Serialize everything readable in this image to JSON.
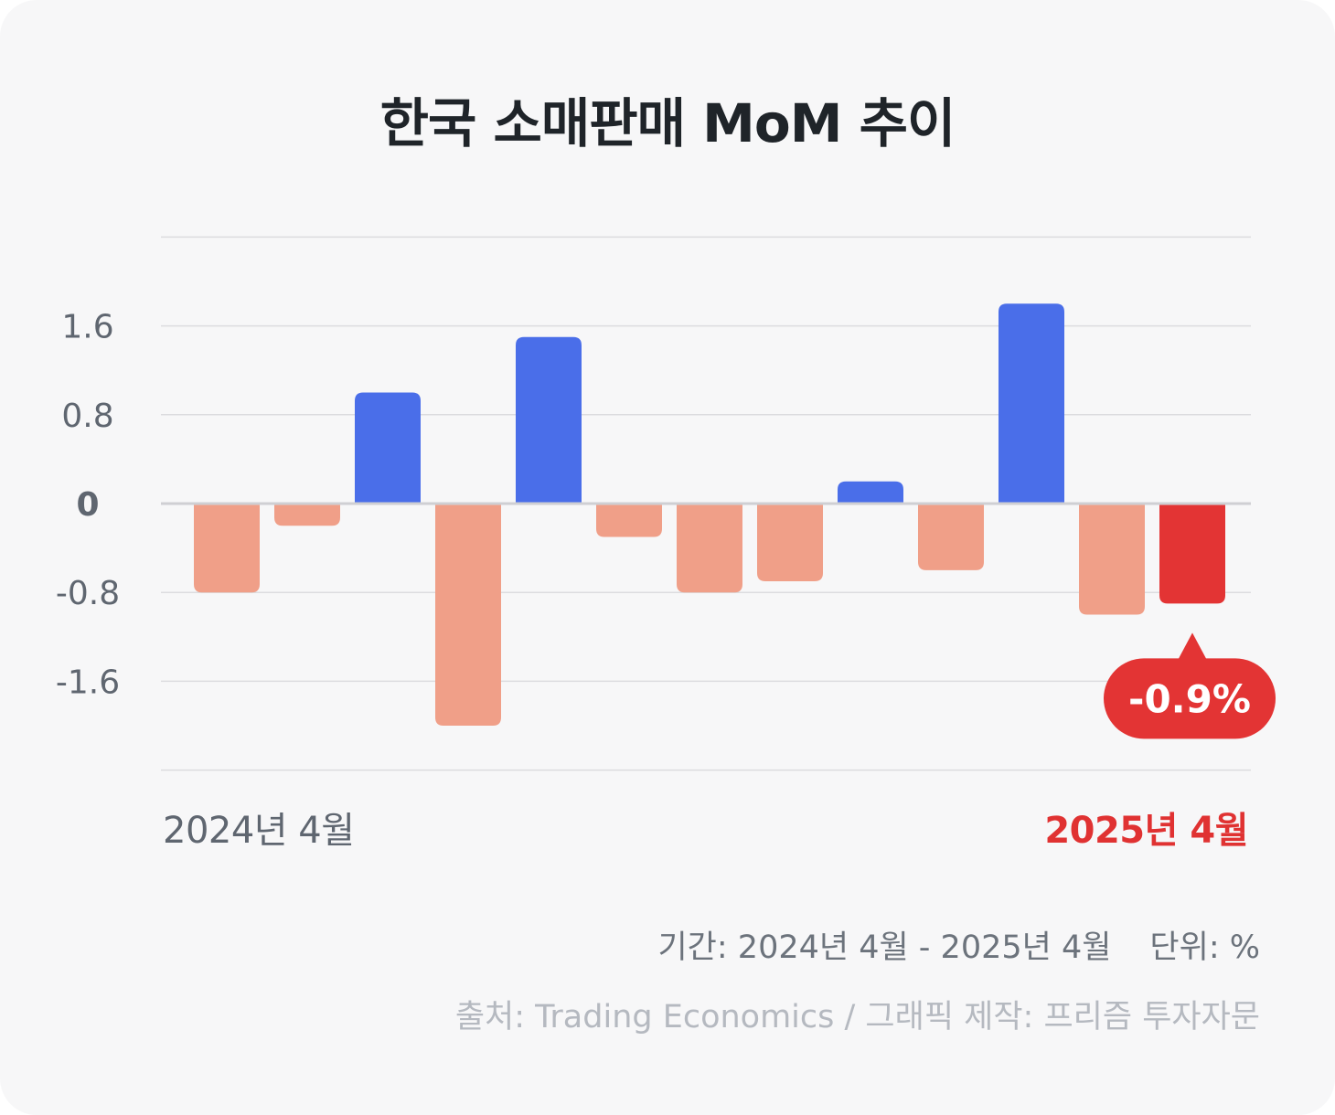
{
  "title": "한국 소매판매 MoM 추이",
  "period_label": "기간: 2024년 4월 - 2025년 4월",
  "unit_label": "단위: %",
  "source_label": "출처: Trading Economics / 그래픽 제작: 프리즘 투자자문",
  "colors": {
    "positive": "#4a6ee9",
    "negative": "#f09f88",
    "latest": "#e33434",
    "grid": "#dcdcdf",
    "zero_line": "#cfcfd3",
    "tick_text": "#5f6670"
  },
  "chart_data": {
    "type": "bar",
    "title": "한국 소매판매 MoM 추이",
    "xlabel": "",
    "ylabel": "",
    "x_start_label": "2024년 4월",
    "x_end_label": "2025년 4월",
    "categories": [
      "2024년 4월",
      "",
      "",
      "",
      "",
      "",
      "",
      "",
      "",
      "",
      "",
      "",
      "2025년 4월"
    ],
    "values": [
      -0.8,
      -0.2,
      1.0,
      -2.0,
      1.5,
      -0.3,
      -0.8,
      -0.7,
      0.2,
      -0.6,
      1.8,
      -1.0,
      -0.9
    ],
    "yticks": [
      1.6,
      0.8,
      0,
      -0.8,
      -1.6
    ],
    "ytick_labels": [
      "1.6",
      "0.8",
      "0",
      "-0.8",
      "-1.6"
    ],
    "ylim": [
      -2.4,
      2.4
    ],
    "grid": true,
    "highlight": {
      "index": 12,
      "label": "-0.9%"
    }
  }
}
